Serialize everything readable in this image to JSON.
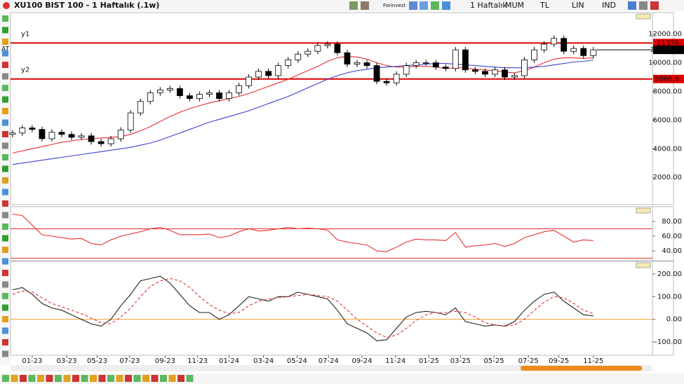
{
  "window": {
    "title": "XU100 BIST 100 - 1 Haftalık (.1w)",
    "brand": "Forinvest",
    "buttons": [
      "1 Haftalık",
      "MUM",
      "TL",
      "LIN",
      "IND"
    ],
    "side_tool": "AT"
  },
  "chart_data": [
    {
      "type": "candlestick",
      "xlim": [
        -0.2,
        65
      ],
      "ylim": [
        200,
        13400
      ],
      "yticks": [
        {
          "value": 2000,
          "label": "2000.00"
        },
        {
          "value": 4000,
          "label": "4000.00"
        },
        {
          "value": 6000,
          "label": "6000.00"
        },
        {
          "value": 8000,
          "label": "8000.00"
        },
        {
          "value": 10000,
          "label": "10000.00"
        },
        {
          "value": 12000,
          "label": "12000.00"
        }
      ],
      "open": [
        5000,
        5100,
        5450,
        5350,
        4700,
        5150,
        5000,
        4800,
        4900,
        4500,
        4350,
        4700,
        5300,
        6500,
        7300,
        7900,
        8100,
        8200,
        7700,
        7500,
        7800,
        7900,
        7500,
        7900,
        8400,
        9000,
        9400,
        9100,
        9800,
        10200,
        10600,
        10800,
        11200,
        11300,
        10700,
        9900,
        10000,
        9800,
        8700,
        8600,
        9200,
        9800,
        10000,
        10000,
        9700,
        9600,
        10900,
        9500,
        9400,
        9200,
        9500,
        9000,
        9100,
        10200,
        10900,
        11300,
        11700,
        10800,
        11000,
        10500
      ],
      "high": [
        5300,
        5650,
        5650,
        5550,
        5350,
        5350,
        5200,
        5100,
        5100,
        4700,
        4900,
        5500,
        6700,
        7500,
        8100,
        8300,
        8400,
        8400,
        7900,
        8000,
        8100,
        8100,
        8100,
        8600,
        9200,
        9600,
        9600,
        10000,
        10400,
        10800,
        11000,
        11400,
        11500,
        11500,
        10900,
        10200,
        10200,
        10000,
        8900,
        9400,
        10000,
        10200,
        10200,
        10200,
        9900,
        11100,
        11100,
        9700,
        9600,
        9700,
        9700,
        9300,
        10400,
        11100,
        11500,
        11900,
        11900,
        11200,
        11200,
        11100
      ],
      "low": [
        4800,
        4900,
        5150,
        4500,
        4500,
        4800,
        4600,
        4600,
        4300,
        4150,
        4150,
        4500,
        5100,
        6300,
        7100,
        7700,
        7900,
        7500,
        7300,
        7300,
        7600,
        7300,
        7300,
        7700,
        8200,
        8800,
        8900,
        8900,
        9600,
        10000,
        10400,
        10600,
        11000,
        10500,
        9700,
        9700,
        9600,
        8500,
        8400,
        8400,
        9000,
        9600,
        9800,
        9500,
        9400,
        9400,
        9300,
        9200,
        9000,
        9000,
        8800,
        8800,
        8900,
        10000,
        10700,
        11100,
        10600,
        10600,
        10300,
        10300
      ],
      "close": [
        5100,
        5450,
        5350,
        4700,
        5150,
        5000,
        4800,
        4900,
        4500,
        4350,
        4700,
        5300,
        6500,
        7300,
        7900,
        8100,
        8200,
        7700,
        7500,
        7800,
        7900,
        7500,
        7900,
        8400,
        9000,
        9400,
        9100,
        9800,
        10200,
        10600,
        10800,
        11200,
        11300,
        10700,
        9900,
        10000,
        9800,
        8700,
        8600,
        9200,
        9800,
        10000,
        10000,
        9700,
        9600,
        10900,
        9500,
        9400,
        9200,
        9500,
        9000,
        9100,
        10200,
        10900,
        11300,
        11700,
        10800,
        11000,
        10500,
        10898.7
      ],
      "lines": [
        {
          "color": "#e83030",
          "values": [
            3700,
            3850,
            4000,
            4150,
            4300,
            4450,
            4550,
            4650,
            4700,
            4750,
            4800,
            4850,
            5000,
            5250,
            5550,
            5900,
            6250,
            6550,
            6800,
            7000,
            7200,
            7350,
            7500,
            7650,
            7850,
            8100,
            8350,
            8600,
            8850,
            9150,
            9450,
            9750,
            10100,
            10350,
            10450,
            10400,
            10250,
            10000,
            9800,
            9700,
            9700,
            9750,
            9750,
            9700,
            9600,
            9650,
            9650,
            9550,
            9500,
            9450,
            9350,
            9300,
            9450,
            9700,
            10000,
            10250,
            10350,
            10350,
            10300,
            10350
          ]
        },
        {
          "color": "#4040d0",
          "values": [
            2900,
            3000,
            3100,
            3200,
            3300,
            3400,
            3500,
            3600,
            3700,
            3800,
            3900,
            4000,
            4100,
            4250,
            4400,
            4600,
            4850,
            5100,
            5350,
            5600,
            5850,
            6050,
            6250,
            6450,
            6650,
            6900,
            7150,
            7400,
            7650,
            7950,
            8250,
            8550,
            8850,
            9100,
            9300,
            9450,
            9550,
            9650,
            9700,
            9750,
            9800,
            9850,
            9900,
            9950,
            9950,
            9900,
            9850,
            9800,
            9750,
            9700,
            9650,
            9650,
            9650,
            9700,
            9750,
            9850,
            9950,
            10050,
            10100,
            10200
          ]
        }
      ],
      "hlines": [
        {
          "name": "y1",
          "value": 11376,
          "color": "#e00000"
        },
        {
          "name": "y2",
          "value": 8866.8,
          "color": "#e00000"
        }
      ]
    },
    {
      "type": "line",
      "xlim": [
        -0.2,
        65
      ],
      "ylim": [
        28.6,
        98.1
      ],
      "yticks": [
        {
          "value": 40,
          "label": "40.00"
        },
        {
          "value": 60,
          "label": "60.00"
        },
        {
          "value": 80,
          "label": "80.00"
        }
      ],
      "lines": [
        {
          "color": "#e83030",
          "values": [
            90,
            88,
            75,
            62,
            60,
            58,
            56,
            57,
            50,
            48,
            55,
            60,
            63,
            66,
            70,
            72,
            68,
            62,
            62,
            62,
            63,
            58,
            60,
            66,
            70,
            67,
            68,
            70,
            72,
            70,
            71,
            70,
            68,
            55,
            52,
            50,
            48,
            40,
            39,
            45,
            52,
            56,
            55,
            55,
            54,
            65,
            45,
            47,
            48,
            50,
            46,
            50,
            58,
            62,
            66,
            68,
            60,
            52,
            55,
            54
          ]
        }
      ],
      "hlines": [
        {
          "value": 70,
          "color": "#e83030"
        },
        {
          "value": 30,
          "color": "#e83030"
        }
      ]
    },
    {
      "type": "line",
      "xlim": [
        -0.2,
        65
      ],
      "ylim": [
        -152.6,
        249.5
      ],
      "yticks": [
        {
          "value": -100,
          "label": "-100.00"
        },
        {
          "value": 0,
          "label": "0.00"
        },
        {
          "value": 100,
          "label": "100.00"
        },
        {
          "value": 200,
          "label": "200.00"
        }
      ],
      "xticks": [
        {
          "value": 2,
          "label": "01-23"
        },
        {
          "value": 5.5,
          "label": "03-23"
        },
        {
          "value": 8.6,
          "label": "05-23"
        },
        {
          "value": 11.9,
          "label": "07-23"
        },
        {
          "value": 15.5,
          "label": "09-23"
        },
        {
          "value": 18.8,
          "label": "11-23"
        },
        {
          "value": 22,
          "label": "01-24"
        },
        {
          "value": 25.5,
          "label": "03-24"
        },
        {
          "value": 28.9,
          "label": "05-24"
        },
        {
          "value": 32.1,
          "label": "07-24"
        },
        {
          "value": 35.5,
          "label": "09-24"
        },
        {
          "value": 38.9,
          "label": "11-24"
        },
        {
          "value": 42.3,
          "label": "01-25"
        },
        {
          "value": 45.5,
          "label": "03-25"
        },
        {
          "value": 48.9,
          "label": "05-25"
        },
        {
          "value": 52.4,
          "label": "07-25"
        },
        {
          "value": 55.5,
          "label": "09-25"
        },
        {
          "value": 59,
          "label": "11-25"
        }
      ],
      "lines": [
        {
          "color": "#222222",
          "values": [
            130,
            140,
            110,
            70,
            50,
            40,
            20,
            0,
            -20,
            -30,
            0,
            60,
            110,
            170,
            180,
            190,
            160,
            110,
            60,
            30,
            30,
            0,
            20,
            60,
            100,
            90,
            80,
            100,
            100,
            120,
            110,
            100,
            90,
            40,
            -20,
            -40,
            -60,
            -95,
            -90,
            -40,
            10,
            30,
            35,
            30,
            20,
            50,
            -10,
            -20,
            -30,
            -25,
            -30,
            -10,
            40,
            80,
            110,
            120,
            80,
            50,
            20,
            15
          ]
        },
        {
          "color": "#e83030",
          "dash": true,
          "values": [
            110,
            125,
            120,
            95,
            70,
            55,
            40,
            25,
            5,
            -15,
            -20,
            10,
            50,
            100,
            145,
            170,
            180,
            170,
            140,
            100,
            65,
            40,
            25,
            30,
            60,
            80,
            90,
            95,
            100,
            105,
            110,
            105,
            100,
            80,
            40,
            0,
            -30,
            -60,
            -80,
            -70,
            -40,
            -5,
            20,
            30,
            30,
            35,
            30,
            10,
            -15,
            -25,
            -30,
            -25,
            0,
            40,
            75,
            100,
            95,
            70,
            40,
            25
          ]
        }
      ],
      "hlines": [
        {
          "value": 0,
          "color": "#f0a030"
        }
      ]
    }
  ]
}
